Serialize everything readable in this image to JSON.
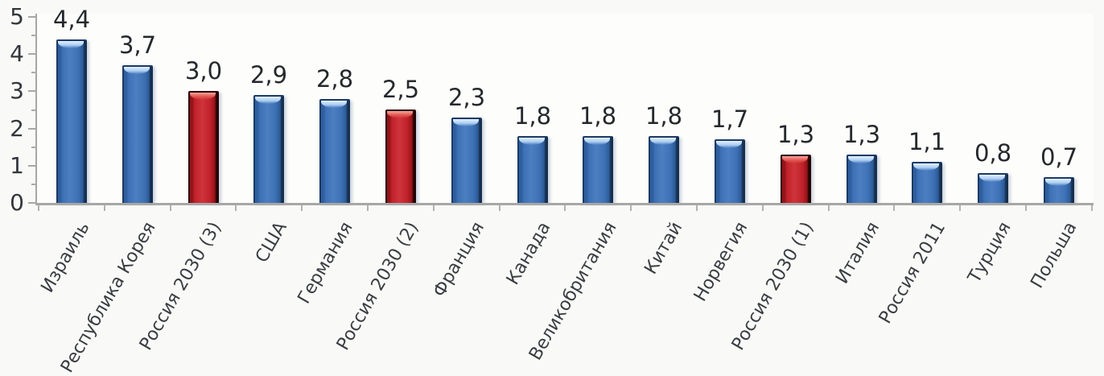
{
  "chart_data": {
    "type": "bar",
    "title": "",
    "xlabel": "",
    "ylabel": "",
    "categories": [
      "Израиль",
      "Республика Корея",
      "Россия 2030 (3)",
      "США",
      "Германия",
      "Россия 2030 (2)",
      "Франция",
      "Канада",
      "Великобритания",
      "Китай",
      "Норвегия",
      "Россия 2030 (1)",
      "Италия",
      "Россия 2011",
      "Турция",
      "Польша"
    ],
    "values": [
      4.4,
      3.7,
      3.0,
      2.9,
      2.8,
      2.5,
      2.3,
      1.8,
      1.8,
      1.8,
      1.7,
      1.3,
      1.3,
      1.1,
      0.8,
      0.7
    ],
    "value_labels": [
      "4,4",
      "3,7",
      "3,0",
      "2,9",
      "2,8",
      "2,5",
      "2,3",
      "1,8",
      "1,8",
      "1,8",
      "1,7",
      "1,3",
      "1,3",
      "1,1",
      "0,8",
      "0,7"
    ],
    "bar_colors": [
      "blue",
      "blue",
      "red",
      "blue",
      "blue",
      "red",
      "blue",
      "blue",
      "blue",
      "blue",
      "blue",
      "red",
      "blue",
      "blue",
      "blue",
      "blue"
    ],
    "ylim": [
      0,
      5
    ],
    "ytick_labels": [
      "0",
      "1",
      "2",
      "3",
      "4",
      "5"
    ],
    "minor_yticks": [
      0.5,
      1.5,
      2.5,
      3.5,
      4.5
    ],
    "grid": false,
    "legend": null,
    "x_label_rotation_deg": 60,
    "colors": {
      "blue_bar": "#3D71B5",
      "blue_bar_edge": "#1B3A64",
      "red_bar": "#C1212A",
      "red_bar_edge": "#2E0607",
      "axis": "#A7A7A7",
      "text": "#33363B",
      "background": "#F9F9F7"
    }
  }
}
